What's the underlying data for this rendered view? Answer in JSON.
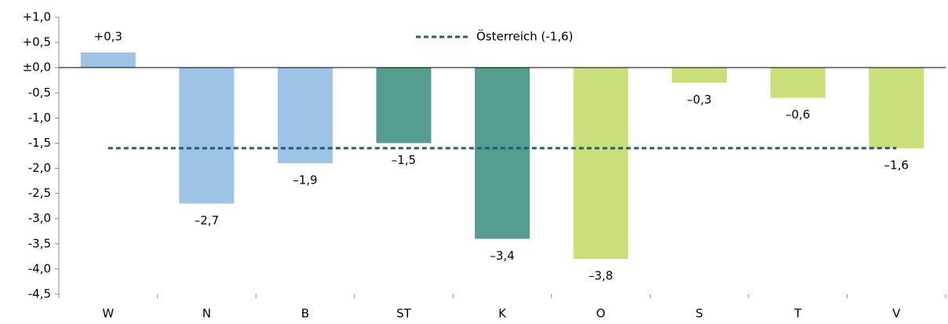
{
  "chart_data": {
    "type": "bar",
    "categories": [
      "W",
      "N",
      "B",
      "ST",
      "K",
      "O",
      "S",
      "T",
      "V"
    ],
    "values": [
      0.3,
      -2.7,
      -1.9,
      -1.5,
      -3.4,
      -3.8,
      -0.3,
      -0.6,
      -1.6
    ],
    "value_labels": [
      "+0,3",
      "–2,7",
      "–1,9",
      "–1,5",
      "–3,4",
      "–3,8",
      "–0,3",
      "–0,6",
      "–1,6"
    ],
    "colors": [
      "#9dc3e6",
      "#9dc3e6",
      "#9dc3e6",
      "#559e8f",
      "#559e8f",
      "#c9e07a",
      "#c9e07a",
      "#c9e07a",
      "#c9e07a"
    ],
    "reference_line": {
      "name": "Österreich (-1,6)",
      "value": -1.6,
      "color": "#1f5f73"
    },
    "ylim": [
      -4.5,
      1.0
    ],
    "yticks": [
      {
        "value": 1.0,
        "label": "+1,0"
      },
      {
        "value": 0.5,
        "label": "+0,5"
      },
      {
        "value": 0,
        "label": "±0,0"
      },
      {
        "value": -0.5,
        "label": "-0,5"
      },
      {
        "value": -1.0,
        "label": "-1,0"
      },
      {
        "value": -1.5,
        "label": "-1,5"
      },
      {
        "value": -2.0,
        "label": "-2,0"
      },
      {
        "value": -2.5,
        "label": "-2,5"
      },
      {
        "value": -3.0,
        "label": "-3,0"
      },
      {
        "value": -3.5,
        "label": "-3,5"
      },
      {
        "value": -4.0,
        "label": "-4,0"
      },
      {
        "value": -4.5,
        "label": "-4,5"
      }
    ]
  }
}
